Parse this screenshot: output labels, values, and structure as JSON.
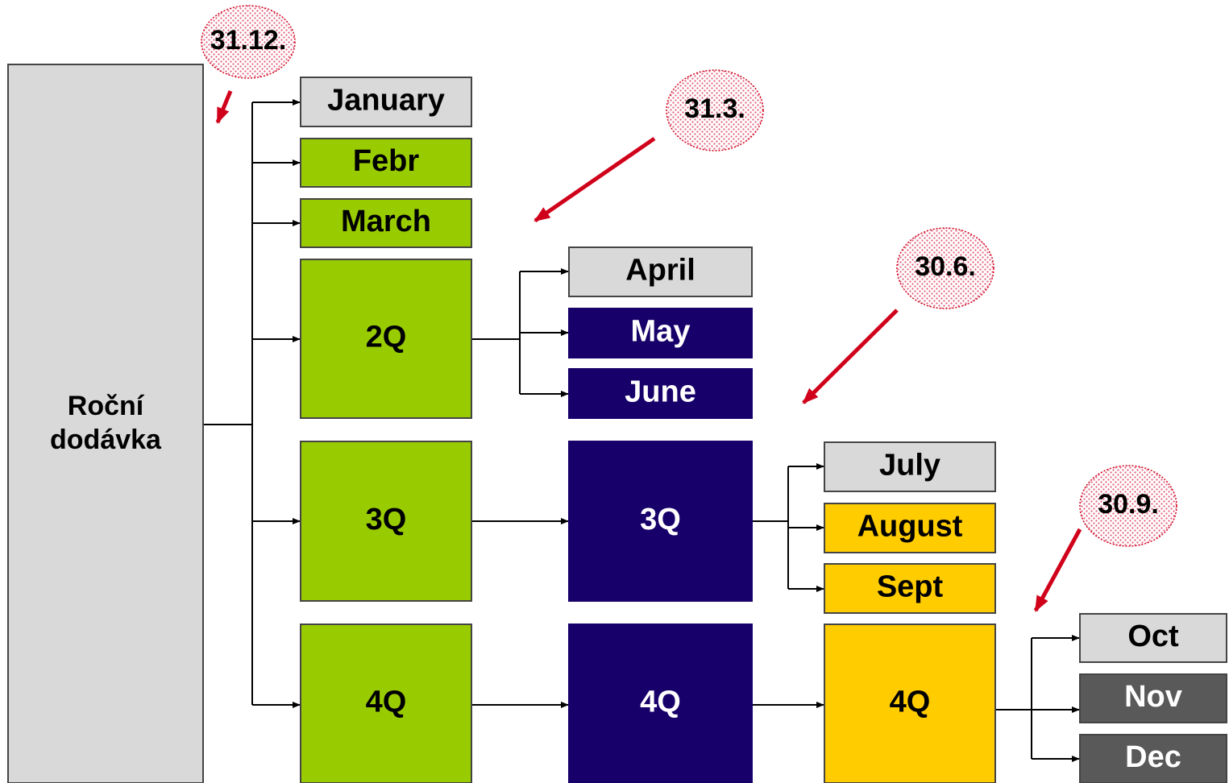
{
  "nodes": [
    {
      "label": "Roční dodávka"
    },
    {
      "label": "January"
    },
    {
      "label": "Febr"
    },
    {
      "label": "March"
    },
    {
      "label": "2Q"
    },
    {
      "label": "3Q"
    },
    {
      "label": "4Q"
    },
    {
      "label": "April"
    },
    {
      "label": "May"
    },
    {
      "label": "June"
    },
    {
      "label": "3Q"
    },
    {
      "label": "4Q"
    },
    {
      "label": "July"
    },
    {
      "label": "August"
    },
    {
      "label": "Sept"
    },
    {
      "label": "4Q"
    },
    {
      "label": "Oct"
    },
    {
      "label": "Nov"
    },
    {
      "label": "Dec"
    }
  ],
  "badges": [
    {
      "label": "31.12."
    },
    {
      "label": "31.3."
    },
    {
      "label": "30.6."
    },
    {
      "label": "30.9."
    }
  ]
}
